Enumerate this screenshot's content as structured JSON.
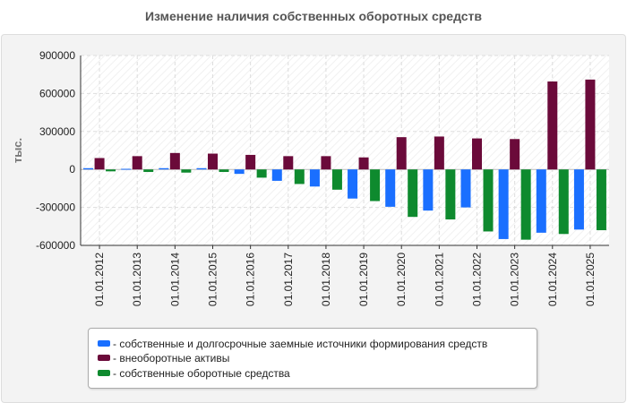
{
  "chart_data": {
    "type": "bar",
    "title": "Изменение наличия собственных оборотных средств",
    "xlabel": "",
    "ylabel": "тыс.",
    "ylim": [
      -600000,
      900000
    ],
    "yticks": [
      900000,
      600000,
      300000,
      0,
      -300000,
      -600000
    ],
    "yticklabels": [
      "900000",
      "600000",
      "300000",
      "0",
      "-300000",
      "-600000"
    ],
    "grid": true,
    "legend_position": "bottom",
    "categories": [
      "01.01.2012",
      "01.01.2013",
      "01.01.2014",
      "01.01.2015",
      "01.01.2016",
      "01.01.2017",
      "01.01.2018",
      "01.01.2019",
      "01.01.2020",
      "01.01.2021",
      "01.01.2022",
      "01.01.2023",
      "01.01.2024",
      "01.01.2025"
    ],
    "series": [
      {
        "name": "- собственные и долгосрочные заемные источники формирования средств",
        "color": "#1a6fff",
        "values": [
          10000,
          5000,
          10000,
          10000,
          -35000,
          -90000,
          -135000,
          -230000,
          -295000,
          -325000,
          -300000,
          -550000,
          -500000,
          -475000
        ]
      },
      {
        "name": "- внеоборотные активы",
        "color": "#6b0a3a",
        "values": [
          90000,
          105000,
          130000,
          125000,
          115000,
          105000,
          105000,
          95000,
          255000,
          260000,
          245000,
          240000,
          695000,
          710000
        ]
      },
      {
        "name": "- собственные оборотные средства",
        "color": "#0e8a2e",
        "values": [
          -15000,
          -20000,
          -25000,
          -20000,
          -65000,
          -115000,
          -160000,
          -250000,
          -375000,
          -395000,
          -490000,
          -555000,
          -510000,
          -480000
        ]
      }
    ]
  }
}
